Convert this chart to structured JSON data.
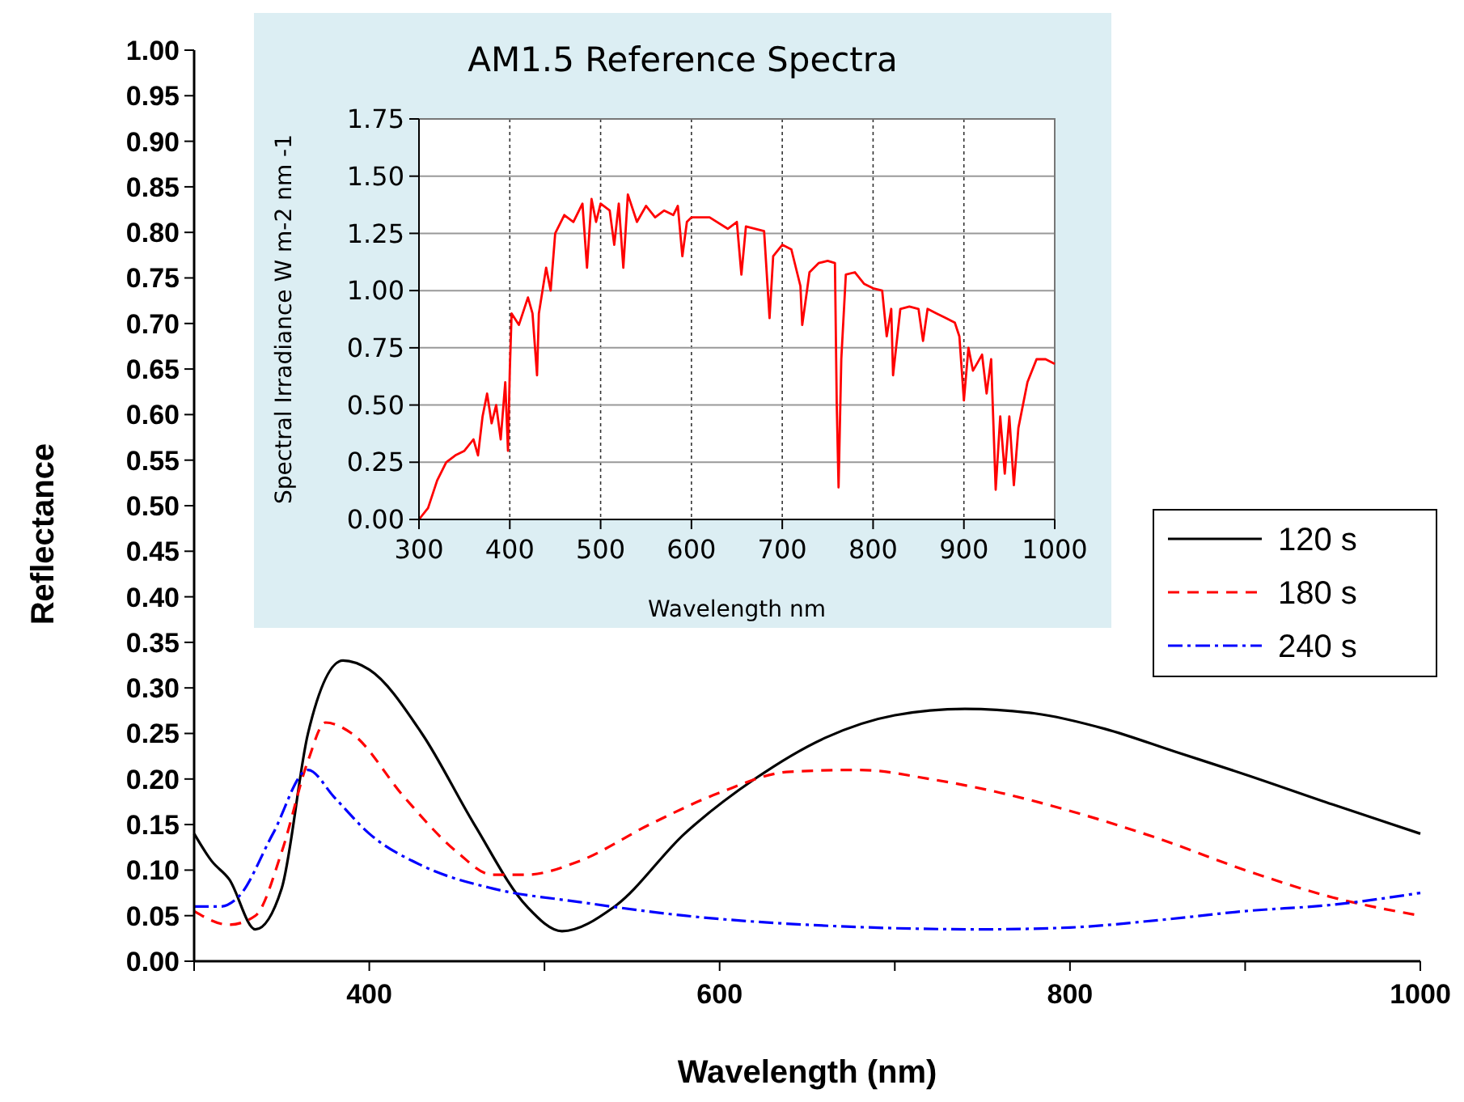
{
  "chart_data": [
    {
      "type": "line",
      "xlabel": "Wavelength (nm)",
      "ylabel": "Reflectance",
      "xlim": [
        300,
        1000
      ],
      "ylim": [
        0,
        1
      ],
      "xticks": [
        {
          "value": 300,
          "label": null
        },
        400,
        {
          "value": 500,
          "label": null
        },
        600,
        {
          "value": 700,
          "label": null
        },
        800,
        {
          "value": 900,
          "label": null
        },
        1000
      ],
      "yticks": [
        {
          "value": 0,
          "label": "0.00"
        },
        {
          "value": 0.05,
          "label": "0.05"
        },
        {
          "value": 0.1,
          "label": "0.10"
        },
        {
          "value": 0.15,
          "label": "0.15"
        },
        {
          "value": 0.2,
          "label": "0.20"
        },
        {
          "value": 0.25,
          "label": "0.25"
        },
        {
          "value": 0.3,
          "label": "0.30"
        },
        {
          "value": 0.35,
          "label": "0.35"
        },
        {
          "value": 0.4,
          "label": "0.40"
        },
        {
          "value": 0.45,
          "label": "0.45"
        },
        {
          "value": 0.5,
          "label": "0.50"
        },
        {
          "value": 0.55,
          "label": "0.55"
        },
        {
          "value": 0.6,
          "label": "0.60"
        },
        {
          "value": 0.65,
          "label": "0.65"
        },
        {
          "value": 0.7,
          "label": "0.70"
        },
        {
          "value": 0.75,
          "label": "0.75"
        },
        {
          "value": 0.8,
          "label": "0.80"
        },
        {
          "value": 0.85,
          "label": "0.85"
        },
        {
          "value": 0.9,
          "label": "0.90"
        },
        {
          "value": 0.95,
          "label": "0.95"
        },
        {
          "value": 1,
          "label": "1.00"
        }
      ],
      "legend": "right",
      "marker": "none",
      "series": [
        {
          "name": "120 s",
          "color": "#000000",
          "line_style": "solid",
          "x": [
            300,
            310,
            320,
            335,
            350,
            365,
            385,
            400,
            430,
            460,
            490,
            510,
            540,
            580,
            620,
            660,
            700,
            740,
            780,
            820,
            860,
            900,
            950,
            1000
          ],
          "values": [
            0.14,
            0.11,
            0.09,
            0.035,
            0.08,
            0.25,
            0.33,
            0.32,
            0.25,
            0.15,
            0.06,
            0.033,
            0.06,
            0.14,
            0.2,
            0.245,
            0.27,
            0.277,
            0.272,
            0.255,
            0.23,
            0.205,
            0.172,
            0.14
          ]
        },
        {
          "name": "180 s",
          "color": "#ff0000",
          "line_style": "dashed",
          "x": [
            300,
            320,
            335,
            350,
            365,
            375,
            390,
            420,
            450,
            470,
            490,
            520,
            560,
            600,
            640,
            680,
            720,
            760,
            800,
            850,
            900,
            950,
            1000
          ],
          "values": [
            0.055,
            0.04,
            0.05,
            0.12,
            0.22,
            0.262,
            0.25,
            0.18,
            0.12,
            0.095,
            0.095,
            0.11,
            0.15,
            0.185,
            0.208,
            0.21,
            0.2,
            0.185,
            0.165,
            0.135,
            0.1,
            0.07,
            0.05
          ]
        },
        {
          "name": "240 s",
          "color": "#0000ff",
          "line_style": "dotted",
          "x": [
            300,
            315,
            325,
            345,
            365,
            380,
            400,
            430,
            470,
            520,
            580,
            650,
            750,
            800,
            850,
            900,
            950,
            1000
          ],
          "values": [
            0.06,
            0.06,
            0.07,
            0.14,
            0.21,
            0.18,
            0.14,
            0.105,
            0.08,
            0.065,
            0.05,
            0.04,
            0.035,
            0.037,
            0.045,
            0.055,
            0.062,
            0.075
          ]
        }
      ]
    },
    {
      "type": "line",
      "title": "AM1.5   Reference Spectra",
      "xlabel": "Wavelength nm",
      "ylabel": "Spectral Irradiance W m-2 nm -1",
      "xlim": [
        300,
        1000
      ],
      "ylim": [
        0,
        1.75
      ],
      "xticks": [
        300,
        400,
        500,
        600,
        700,
        800,
        900,
        1000
      ],
      "yticks": [
        {
          "value": 0,
          "label": "0.00"
        },
        {
          "value": 0.25,
          "label": "0.25"
        },
        {
          "value": 0.5,
          "label": "0.50"
        },
        {
          "value": 0.75,
          "label": "0.75"
        },
        {
          "value": 1,
          "label": "1.00"
        },
        {
          "value": 1.25,
          "label": "1.25"
        },
        {
          "value": 1.5,
          "label": "1.50"
        },
        {
          "value": 1.75,
          "label": "1.75"
        }
      ],
      "grid": true,
      "legend": false,
      "marker": "none",
      "series": [
        {
          "color": "#ff0000",
          "line_style": "solid",
          "x": [
            300,
            310,
            320,
            330,
            340,
            350,
            360,
            365,
            370,
            375,
            380,
            385,
            390,
            395,
            398,
            400,
            402,
            410,
            420,
            425,
            430,
            432,
            440,
            445,
            450,
            460,
            470,
            480,
            485,
            490,
            495,
            500,
            510,
            515,
            520,
            525,
            530,
            540,
            550,
            560,
            570,
            580,
            585,
            590,
            595,
            600,
            620,
            640,
            650,
            655,
            660,
            680,
            686,
            690,
            700,
            710,
            720,
            722,
            730,
            740,
            750,
            758,
            760,
            762,
            765,
            770,
            780,
            790,
            800,
            810,
            815,
            820,
            822,
            830,
            840,
            850,
            855,
            860,
            870,
            880,
            890,
            895,
            900,
            905,
            910,
            920,
            925,
            930,
            935,
            940,
            945,
            950,
            955,
            960,
            970,
            980,
            990,
            1000
          ],
          "values": [
            0,
            0.05,
            0.17,
            0.25,
            0.28,
            0.3,
            0.35,
            0.28,
            0.45,
            0.55,
            0.42,
            0.5,
            0.35,
            0.6,
            0.3,
            0.65,
            0.9,
            0.85,
            0.97,
            0.9,
            0.63,
            0.9,
            1.1,
            1.0,
            1.25,
            1.33,
            1.3,
            1.38,
            1.1,
            1.4,
            1.3,
            1.38,
            1.35,
            1.2,
            1.38,
            1.1,
            1.42,
            1.3,
            1.37,
            1.32,
            1.35,
            1.33,
            1.37,
            1.15,
            1.3,
            1.32,
            1.32,
            1.27,
            1.3,
            1.07,
            1.28,
            1.26,
            0.88,
            1.15,
            1.2,
            1.18,
            1.02,
            0.85,
            1.08,
            1.12,
            1.13,
            1.12,
            0.5,
            0.14,
            0.7,
            1.07,
            1.08,
            1.03,
            1.01,
            1.0,
            0.8,
            0.92,
            0.63,
            0.92,
            0.93,
            0.92,
            0.78,
            0.92,
            0.9,
            0.88,
            0.86,
            0.8,
            0.52,
            0.75,
            0.65,
            0.72,
            0.55,
            0.7,
            0.13,
            0.45,
            0.2,
            0.45,
            0.15,
            0.4,
            0.6,
            0.7,
            0.7,
            0.68
          ]
        }
      ]
    }
  ]
}
